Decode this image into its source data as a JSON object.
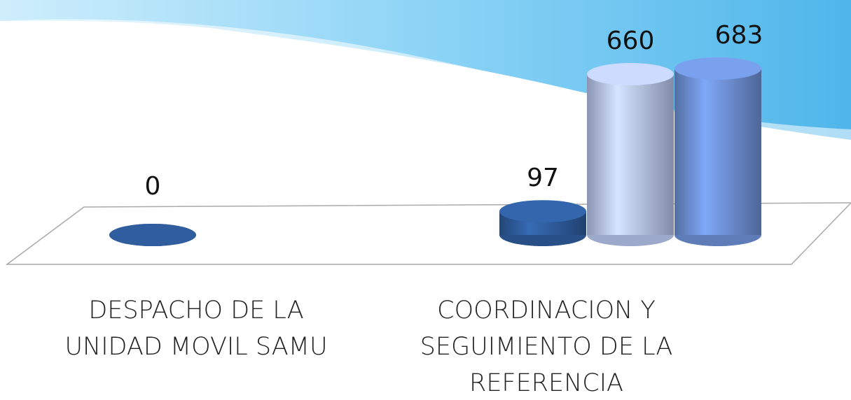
{
  "chart_data": {
    "type": "bar3d",
    "categories": [
      "DESPACHO DE LA UNIDAD MOVIL SAMU",
      "COORDINACION Y SEGUIMIENTO DE LA REFERENCIA"
    ],
    "series": [
      {
        "color": "#2f5d9e",
        "values": [
          0,
          97
        ]
      },
      {
        "color": "#b9c7ee",
        "values": [
          null,
          660
        ]
      },
      {
        "color": "#6f92d8",
        "values": [
          null,
          683
        ]
      }
    ]
  }
}
